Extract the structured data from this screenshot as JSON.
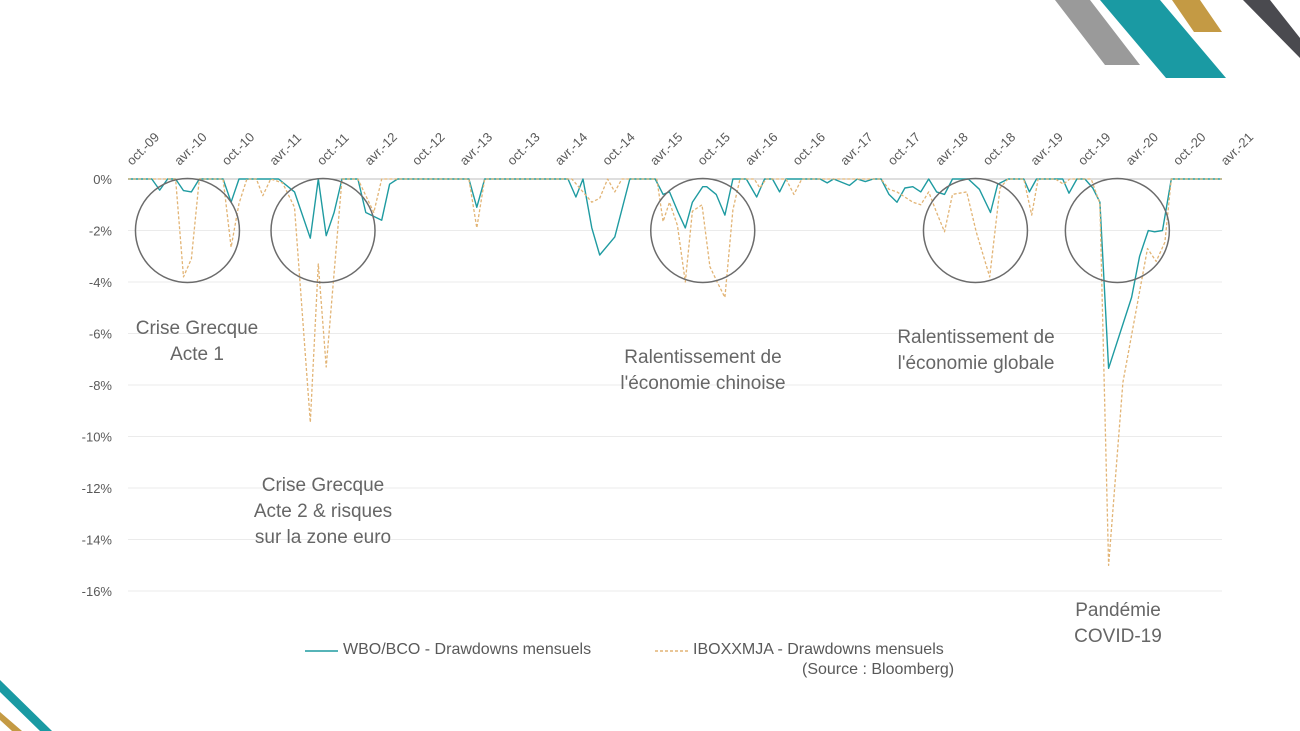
{
  "chart_data": {
    "type": "line",
    "title": "",
    "x_start": "oct-09",
    "x_unit": "months since oct-09",
    "x_tick_labels": [
      "oct.-09",
      "avr.-10",
      "oct.-10",
      "avr.-11",
      "oct.-11",
      "avr.-12",
      "oct.-12",
      "avr.-13",
      "oct.-13",
      "avr.-14",
      "oct.-14",
      "avr.-15",
      "oct.-15",
      "avr.-16",
      "oct.-16",
      "avr.-17",
      "oct.-17",
      "avr.-18",
      "oct.-18",
      "avr.-19",
      "oct.-19",
      "avr.-20",
      "oct.-20",
      "avr.-21"
    ],
    "y_tick_labels": [
      "0%",
      "-2%",
      "-4%",
      "-6%",
      "-8%",
      "-10%",
      "-12%",
      "-14%",
      "-16%"
    ],
    "y_ticks": [
      0,
      -2,
      -4,
      -6,
      -8,
      -10,
      -12,
      -14,
      -16
    ],
    "ylim": [
      -16,
      0
    ],
    "xlim": [
      0,
      138
    ],
    "grid": true,
    "series": [
      {
        "name": "WBO/BCO - Drawdowns mensuels",
        "color": "#1f9ba1",
        "style": "solid",
        "points": [
          [
            0,
            0
          ],
          [
            3,
            0
          ],
          [
            4,
            -0.43
          ],
          [
            5,
            0
          ],
          [
            6,
            0
          ],
          [
            7,
            -0.45
          ],
          [
            8,
            -0.5
          ],
          [
            9,
            0
          ],
          [
            12,
            0
          ],
          [
            13,
            -0.9
          ],
          [
            14,
            0
          ],
          [
            19,
            0
          ],
          [
            21,
            -0.5
          ],
          [
            23,
            -2.3
          ],
          [
            24,
            0
          ],
          [
            25,
            -2.2
          ],
          [
            26,
            -1.3
          ],
          [
            27,
            0
          ],
          [
            29,
            0
          ],
          [
            30,
            -1.3
          ],
          [
            32,
            -1.6
          ],
          [
            33,
            -0.2
          ],
          [
            34,
            0
          ],
          [
            43,
            0
          ],
          [
            44,
            -1.1
          ],
          [
            45,
            0
          ],
          [
            55.5,
            0
          ],
          [
            56.5,
            -0.7
          ],
          [
            57.4,
            0
          ],
          [
            58.5,
            -1.9
          ],
          [
            59.5,
            -2.95
          ],
          [
            61.4,
            -2.25
          ],
          [
            63.3,
            0
          ],
          [
            66.5,
            0
          ],
          [
            67.5,
            -0.6
          ],
          [
            68.3,
            -0.5
          ],
          [
            69.4,
            -1.3
          ],
          [
            70.3,
            -1.9
          ],
          [
            71.2,
            -0.9
          ],
          [
            72.5,
            -0.3
          ],
          [
            73,
            -0.3
          ],
          [
            74.2,
            -0.6
          ],
          [
            75.3,
            -1.4
          ],
          [
            76.3,
            0
          ],
          [
            78,
            0
          ],
          [
            79.3,
            -0.7
          ],
          [
            80.3,
            0
          ],
          [
            81.3,
            0
          ],
          [
            82.2,
            -0.5
          ],
          [
            83,
            0
          ],
          [
            87.3,
            0
          ],
          [
            88.2,
            -0.15
          ],
          [
            89,
            0
          ],
          [
            91,
            -0.25
          ],
          [
            92,
            0
          ],
          [
            93,
            -0.1
          ],
          [
            94,
            0
          ],
          [
            95,
            0
          ],
          [
            96,
            -0.6
          ],
          [
            97,
            -0.9
          ],
          [
            98,
            -0.35
          ],
          [
            99,
            -0.3
          ],
          [
            100,
            -0.5
          ],
          [
            101,
            0
          ],
          [
            102,
            -0.5
          ],
          [
            103,
            -0.6
          ],
          [
            104,
            0
          ],
          [
            106,
            0
          ],
          [
            107.4,
            -0.4
          ],
          [
            108.8,
            -1.3
          ],
          [
            109.7,
            -0.2
          ],
          [
            111,
            0
          ],
          [
            113,
            0
          ],
          [
            113.7,
            -0.5
          ],
          [
            114.6,
            0
          ],
          [
            117.9,
            0
          ],
          [
            118.7,
            -0.55
          ],
          [
            119.7,
            0
          ],
          [
            120.7,
            0
          ],
          [
            121.7,
            -0.35
          ],
          [
            122.6,
            -0.9
          ],
          [
            123.7,
            -7.35
          ],
          [
            126.6,
            -4.6
          ],
          [
            127.6,
            -3.0
          ],
          [
            128.7,
            -2.0
          ],
          [
            129.5,
            -2.05
          ],
          [
            130.5,
            -2.0
          ],
          [
            131.6,
            0
          ],
          [
            138,
            0
          ]
        ]
      },
      {
        "name": "IBOXXMJA - Drawdowns mensuels",
        "color": "#e2b475",
        "style": "dashed",
        "points": [
          [
            0,
            0
          ],
          [
            6,
            0
          ],
          [
            7,
            -3.8
          ],
          [
            8,
            -3.1
          ],
          [
            9,
            0
          ],
          [
            12,
            0
          ],
          [
            13,
            -2.65
          ],
          [
            14,
            -0.95
          ],
          [
            15,
            0
          ],
          [
            16.2,
            0
          ],
          [
            17,
            -0.65
          ],
          [
            18,
            0
          ],
          [
            19.5,
            -0.15
          ],
          [
            21,
            -1.1
          ],
          [
            23,
            -9.45
          ],
          [
            24,
            -3.3
          ],
          [
            25,
            -7.3
          ],
          [
            27,
            0
          ],
          [
            29,
            0
          ],
          [
            31,
            -1.3
          ],
          [
            32,
            0
          ],
          [
            43,
            0
          ],
          [
            44,
            -1.9
          ],
          [
            45,
            0
          ],
          [
            56,
            0
          ],
          [
            58.5,
            -0.9
          ],
          [
            59.5,
            -0.75
          ],
          [
            60.5,
            0
          ],
          [
            61.4,
            -0.5
          ],
          [
            62.3,
            0
          ],
          [
            66.7,
            0
          ],
          [
            67.5,
            -1.65
          ],
          [
            68.3,
            -0.9
          ],
          [
            69.3,
            -1.8
          ],
          [
            70.3,
            -4.0
          ],
          [
            71.2,
            -1.25
          ],
          [
            72.4,
            -1.0
          ],
          [
            73.4,
            -3.4
          ],
          [
            74.4,
            -4.05
          ],
          [
            75.3,
            -4.6
          ],
          [
            76.3,
            -1.2
          ],
          [
            77.2,
            0
          ],
          [
            79,
            0
          ],
          [
            79.7,
            -0.35
          ],
          [
            80.5,
            0
          ],
          [
            83,
            0
          ],
          [
            84,
            -0.6
          ],
          [
            85,
            0
          ],
          [
            95,
            0
          ],
          [
            96,
            -0.4
          ],
          [
            97,
            -0.5
          ],
          [
            99,
            -0.9
          ],
          [
            100,
            -1.0
          ],
          [
            101,
            -0.5
          ],
          [
            102,
            -1.3
          ],
          [
            103,
            -2.05
          ],
          [
            104,
            -0.6
          ],
          [
            105.8,
            -0.5
          ],
          [
            107,
            -2.05
          ],
          [
            108.7,
            -3.8
          ],
          [
            110,
            -0.35
          ],
          [
            111,
            0
          ],
          [
            113,
            0
          ],
          [
            114,
            -1.4
          ],
          [
            114.8,
            0
          ],
          [
            117,
            0
          ],
          [
            118,
            -0.2
          ],
          [
            118.8,
            0
          ],
          [
            121.5,
            0
          ],
          [
            122.6,
            -0.95
          ],
          [
            123.7,
            -15.0
          ],
          [
            125.5,
            -7.9
          ],
          [
            128.6,
            -2.7
          ],
          [
            129.7,
            -3.2
          ],
          [
            130.8,
            -2.45
          ],
          [
            131.6,
            0
          ],
          [
            138,
            0
          ]
        ]
      }
    ],
    "highlight_circles": [
      {
        "month": 7.5,
        "value": -2
      },
      {
        "month": 24.6,
        "value": -2
      },
      {
        "month": 72.5,
        "value": -2
      },
      {
        "month": 106.9,
        "value": -2
      },
      {
        "month": 124.8,
        "value": -2
      }
    ],
    "annotations": [
      {
        "lines": [
          "Crise Grecque",
          "Acte 1"
        ]
      },
      {
        "lines": [
          "Crise Grecque",
          "Acte 2 & risques",
          "sur la zone euro"
        ]
      },
      {
        "lines": [
          "Ralentissement de",
          "l'économie chinoise"
        ]
      },
      {
        "lines": [
          "Ralentissement de",
          "l'économie globale"
        ]
      },
      {
        "lines": [
          "Pandémie",
          "COVID-19"
        ]
      }
    ],
    "legend": {
      "placement": "bottom",
      "source": "(Source : Bloomberg)"
    }
  },
  "colors": {
    "teal": "#1f9ba1",
    "gold": "#c9a04a",
    "gray": "#9a9a9a",
    "dark": "#4a4a4f"
  }
}
